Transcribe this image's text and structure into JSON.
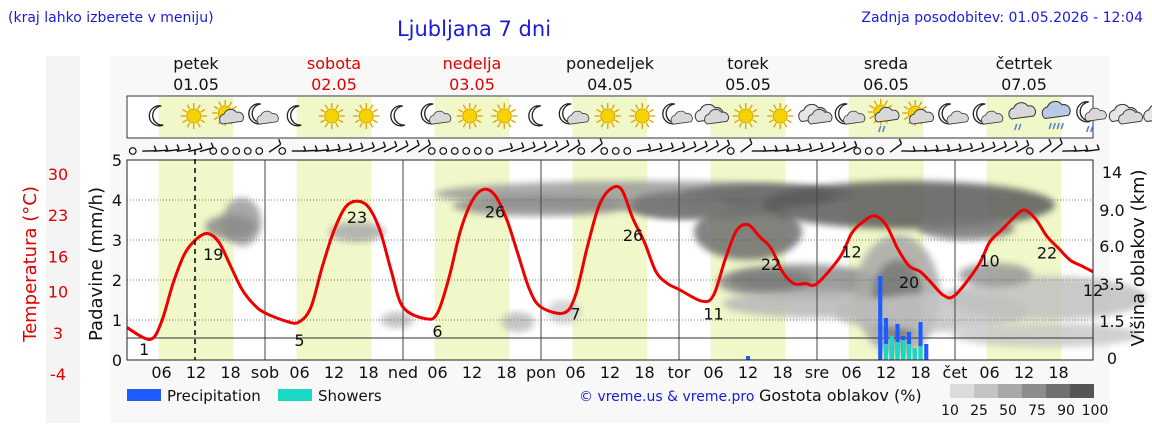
{
  "header": {
    "hint": "(kraj lahko izberete v meniju)",
    "title": "Ljubljana 7 dni",
    "updated": "Zadnja posodobitev: 01.05.2026 - 12:04"
  },
  "days": [
    {
      "name": "petek",
      "date": "01.05",
      "weekend": false,
      "abbr": ""
    },
    {
      "name": "sobota",
      "date": "02.05",
      "weekend": true,
      "abbr": "sob"
    },
    {
      "name": "nedelja",
      "date": "03.05",
      "weekend": true,
      "abbr": "ned"
    },
    {
      "name": "ponedeljek",
      "date": "04.05",
      "weekend": false,
      "abbr": "pon"
    },
    {
      "name": "torek",
      "date": "05.05",
      "weekend": false,
      "abbr": "tor"
    },
    {
      "name": "sreda",
      "date": "06.05",
      "weekend": false,
      "abbr": "sre"
    },
    {
      "name": "četrtek",
      "date": "07.05",
      "weekend": false,
      "abbr": "čet"
    }
  ],
  "weather_icons": [
    "moon-icon",
    "sun-icon",
    "sun-cloud-icon",
    "moon-cloud-icon",
    "moon-icon",
    "sun-icon",
    "sun-icon",
    "moon-icon",
    "moon-cloud-icon",
    "sun-icon",
    "sun-icon",
    "moon-icon",
    "moon-cloud-icon",
    "sun-icon",
    "sun-icon",
    "moon-cloud-icon",
    "cloud-icon",
    "sun-icon",
    "sun-icon",
    "cloud-icon",
    "moon-cloud-icon",
    "sun-cloud-rain-icon",
    "sun-cloud-icon",
    "moon-cloud-icon",
    "moon-cloud-icon",
    "cloud-rain-icon",
    "cloud-heavy-rain-icon",
    "moon-cloud-rain-icon",
    "cloud-icon",
    "cloud-icon",
    "sun-cloud-icon",
    "fog-moon-icon"
  ],
  "axes": {
    "precip_label": "Padavine (mm/h)",
    "temp_label": "Temperatura (°C)",
    "cloud_label": "Višina oblakov (km)",
    "precip_ticks": [
      "5",
      "4",
      "3",
      "2",
      "1",
      "0"
    ],
    "temp_ticks": [
      "30",
      "23",
      "16",
      "10",
      "3",
      "-4"
    ],
    "cloud_ticks": [
      "14",
      "9.0",
      "6.0",
      "3.5",
      "1.5",
      "0"
    ],
    "hour_labels": [
      "06",
      "12",
      "18"
    ]
  },
  "legend": {
    "precip": "Precipitation",
    "showers": "Showers",
    "credit": "© vreme.us & vreme.pro",
    "density_title": "Gostota oblakov (%)",
    "density_ticks": [
      "10",
      "25",
      "50",
      "75",
      "90",
      "100"
    ]
  },
  "colors": {
    "temperature": "#ee0000",
    "precipitation": "#1f5cff",
    "showers": "#19d8c4",
    "daylight": "#f0f7c8",
    "weekend_text": "#e00000",
    "link_blue": "#1a1adc"
  },
  "chart_data": {
    "type": "line",
    "title": "Ljubljana 7 dni",
    "x_unit": "hours from 01.05 00:00",
    "xlim": [
      0,
      168
    ],
    "ylim_temperature": [
      -4,
      30
    ],
    "ylim_precipitation": [
      0,
      5
    ],
    "series": [
      {
        "kind": "temperature",
        "unit": "°C",
        "x": [
          0,
          4,
          6,
          8,
          10,
          12,
          14,
          16,
          18,
          20,
          22,
          24,
          28,
          30,
          32,
          34,
          36,
          38,
          40,
          42,
          44,
          46,
          48,
          52,
          54,
          56,
          58,
          60,
          62,
          64,
          66,
          68,
          70,
          72,
          76,
          78,
          80,
          82,
          84,
          86,
          88,
          90,
          92,
          94,
          96,
          100,
          102,
          104,
          106,
          108,
          110,
          112,
          114,
          116,
          118,
          120,
          124,
          126,
          128,
          130,
          132,
          134,
          136,
          138,
          140,
          142,
          144,
          148,
          150,
          152,
          154,
          156,
          158,
          160,
          162,
          164,
          166,
          168
        ],
        "values": [
          1.5,
          -0.5,
          2.5,
          9,
          14,
          16.5,
          17.5,
          16,
          12,
          8,
          5.5,
          4,
          2.5,
          2.5,
          5,
          12,
          18,
          22,
          23,
          22,
          18,
          11,
          5,
          3,
          4,
          10,
          18,
          23,
          25,
          24,
          20,
          14,
          8,
          5,
          4,
          7,
          15,
          22,
          25,
          25,
          20,
          16,
          11,
          9,
          8,
          6,
          7,
          13,
          18,
          19,
          17,
          15,
          11,
          9,
          9,
          9,
          13.5,
          17.5,
          19.5,
          20.5,
          19,
          15,
          12,
          11,
          9,
          7,
          7,
          12,
          16,
          18,
          20,
          21.5,
          20,
          17,
          15,
          13,
          12,
          11
        ]
      },
      {
        "kind": "precipitation",
        "unit": "mm/h",
        "x": [
          108,
          131,
          132,
          133,
          134,
          135,
          136,
          137,
          138,
          139
        ],
        "values": [
          0.1,
          2.1,
          1.05,
          0.35,
          0.9,
          0.6,
          0.7,
          0.25,
          0.95,
          0.4
        ]
      },
      {
        "kind": "showers",
        "unit": "mm/h",
        "x": [
          132,
          133,
          134,
          135,
          136,
          137,
          138
        ],
        "values": [
          0.4,
          0.6,
          0.45,
          0.5,
          0.4,
          0.3,
          0.35
        ]
      }
    ],
    "annotations": [
      {
        "x": 3,
        "text": "1"
      },
      {
        "x": 15,
        "text": "19"
      },
      {
        "x": 30,
        "text": "5"
      },
      {
        "x": 40,
        "text": "23"
      },
      {
        "x": 54,
        "text": "6"
      },
      {
        "x": 64,
        "text": "26"
      },
      {
        "x": 78,
        "text": "7"
      },
      {
        "x": 88,
        "text": "26"
      },
      {
        "x": 102,
        "text": "11"
      },
      {
        "x": 112,
        "text": "22"
      },
      {
        "x": 126,
        "text": "12"
      },
      {
        "x": 136,
        "text": "20"
      },
      {
        "x": 150,
        "text": "10"
      },
      {
        "x": 160,
        "text": "22"
      },
      {
        "x": 168,
        "text": "12"
      }
    ]
  }
}
